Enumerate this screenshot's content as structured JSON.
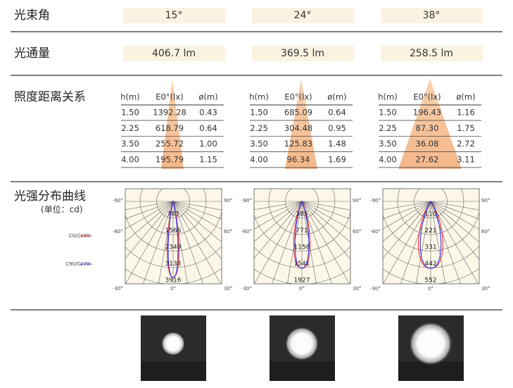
{
  "rows": {
    "beam_angle": "光束角",
    "flux": "光通量",
    "illuminance": "照度距离关系",
    "intensity": "光强分布曲线",
    "intensity_unit": "(单位：cd)"
  },
  "legend": [
    "C0/C180:",
    "C90/C270:"
  ],
  "table_header": [
    "h(m)",
    "E0°(lx)",
    "ø(m)"
  ],
  "polar_angles": [
    "-90°",
    "90°",
    "-60°",
    "60°",
    "-30°",
    "0°",
    "30°"
  ],
  "columns": [
    {
      "beam_angle": "15°",
      "flux": "406.7 lm",
      "table": [
        [
          "1.50",
          "1392.28",
          "0.43"
        ],
        [
          "2.25",
          "618.79",
          "0.64"
        ],
        [
          "3.50",
          "255.72",
          "1.00"
        ],
        [
          "4.00",
          "195.79",
          "1.15"
        ]
      ],
      "rings": [
        783,
        1566,
        2349,
        3133,
        3916
      ]
    },
    {
      "beam_angle": "24°",
      "flux": "369.5 lm",
      "table": [
        [
          "1.50",
          "685.09",
          "0.64"
        ],
        [
          "2.25",
          "304.48",
          "0.95"
        ],
        [
          "3.50",
          "125.83",
          "1.48"
        ],
        [
          "4.00",
          "96.34",
          "1.69"
        ]
      ],
      "rings": [
        385,
        771,
        1156,
        1541,
        1927
      ]
    },
    {
      "beam_angle": "38°",
      "flux": "258.5 lm",
      "table": [
        [
          "1.50",
          "196.43",
          "1.16"
        ],
        [
          "2.25",
          "87.30",
          "1.75"
        ],
        [
          "3.50",
          "36.08",
          "2.72"
        ],
        [
          "4.00",
          "27.62",
          "3.11"
        ]
      ],
      "rings": [
        110,
        221,
        331,
        442,
        552
      ]
    }
  ]
}
